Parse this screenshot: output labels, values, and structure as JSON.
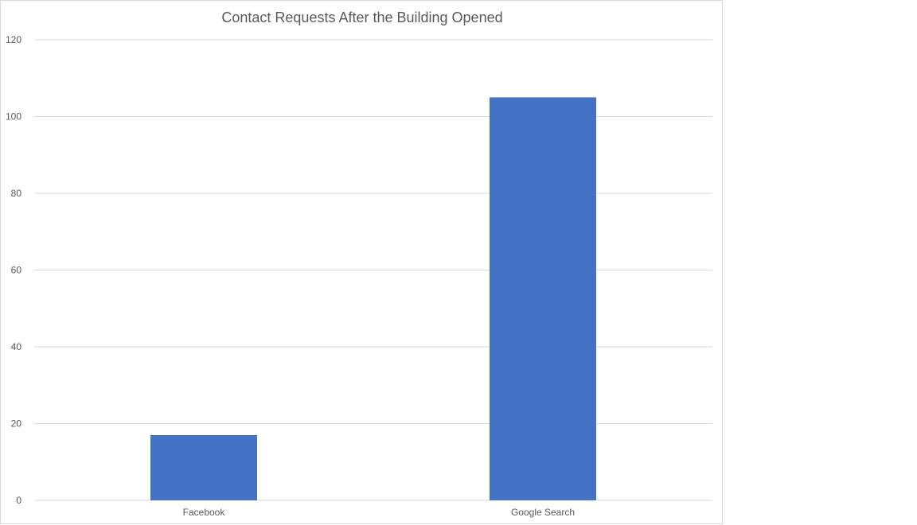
{
  "chart_data": {
    "type": "bar",
    "title": "Contact Requests After the Building Opened",
    "categories": [
      "Facebook",
      "Google Search"
    ],
    "values": [
      17,
      105
    ],
    "ylim": [
      0,
      120
    ],
    "yticks": [
      0,
      20,
      40,
      60,
      80,
      100,
      120
    ],
    "xlabel": "",
    "ylabel": "",
    "grid": true,
    "legend": "none",
    "bar_color": "#4472c4"
  }
}
